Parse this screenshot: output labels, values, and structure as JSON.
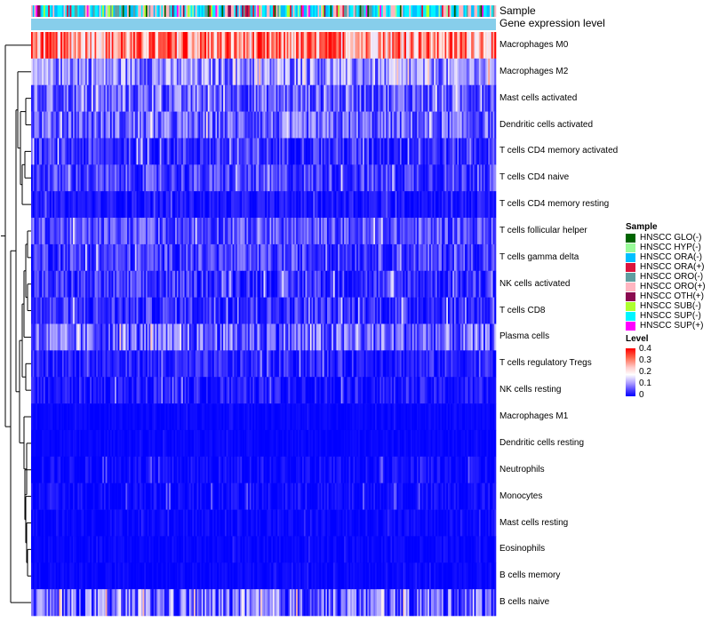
{
  "chart_data": {
    "type": "heatmap",
    "annotation_tracks": [
      "Sample",
      "Gene expression level"
    ],
    "rows": [
      "Macrophages M0",
      "Macrophages M2",
      "Mast cells activated",
      "Dendritic cells activated",
      "T cells CD4 memory activated",
      "T cells CD4 naive",
      "T cells CD4 memory resting",
      "T cells follicular helper",
      "T cells gamma delta",
      "NK cells activated",
      "T cells CD8",
      "Plasma cells",
      "T cells regulatory  Tregs",
      "NK cells resting",
      "Macrophages M1",
      "Dendritic cells resting",
      "Neutrophils",
      "Monocytes",
      "Mast cells resting",
      "Eosinophils",
      "B cells memory",
      "B cells naive"
    ],
    "row_means": [
      0.28,
      0.1,
      0.07,
      0.07,
      0.04,
      0.05,
      0.02,
      0.06,
      0.05,
      0.04,
      0.04,
      0.07,
      0.03,
      0.02,
      0.005,
      0.005,
      0.008,
      0.008,
      0.006,
      0.004,
      0.004,
      0.07
    ],
    "row_spread": [
      0.12,
      0.07,
      0.06,
      0.06,
      0.05,
      0.05,
      0.03,
      0.05,
      0.05,
      0.05,
      0.05,
      0.07,
      0.04,
      0.04,
      0.01,
      0.01,
      0.03,
      0.03,
      0.02,
      0.015,
      0.015,
      0.08
    ],
    "n_samples": 300,
    "legend": {
      "sample_title": "Sample",
      "sample_groups": [
        {
          "label": "HNSCC GLO(-)",
          "color": "#006400"
        },
        {
          "label": "HNSCC HYP(-)",
          "color": "#98fb98"
        },
        {
          "label": "HNSCC ORA(-)",
          "color": "#00bfff"
        },
        {
          "label": "HNSCC ORA(+)",
          "color": "#dc143c"
        },
        {
          "label": "HNSCC ORO(-)",
          "color": "#5f9ea0"
        },
        {
          "label": "HNSCC ORO(+)",
          "color": "#ffb6c1"
        },
        {
          "label": "HNSCC OTH(+)",
          "color": "#8b0a50"
        },
        {
          "label": "HNSCC SUB(-)",
          "color": "#adff2f"
        },
        {
          "label": "HNSCC SUP(-)",
          "color": "#00f5ff"
        },
        {
          "label": "HNSCC SUP(+)",
          "color": "#ff00ff"
        }
      ],
      "level_title": "Level",
      "level_ticks": [
        "0.4",
        "0.3",
        "0.2",
        "0.1",
        "0"
      ],
      "level_range": [
        0,
        0.4
      ]
    },
    "gene_expression_track_color": "#87ceeb"
  }
}
